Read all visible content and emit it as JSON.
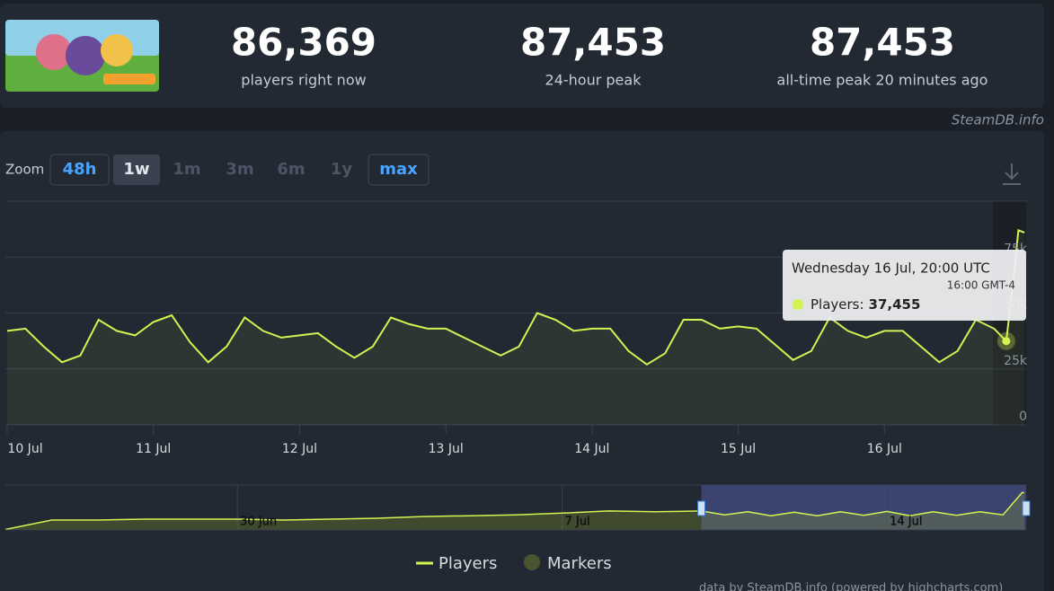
{
  "header": {
    "stats": [
      {
        "value": "86,369",
        "label": "players right now"
      },
      {
        "value": "87,453",
        "label": "24-hour peak"
      },
      {
        "value": "87,453",
        "label": "all-time peak 20 minutes ago"
      }
    ],
    "credit": "SteamDB.info"
  },
  "zoom": {
    "label": "Zoom",
    "buttons": [
      "48h",
      "1w",
      "1m",
      "3m",
      "6m",
      "1y",
      "max"
    ]
  },
  "chart_data": [
    {
      "type": "line",
      "x": [
        "10 Jul 00:00",
        "10 Jul 03:00",
        "10 Jul 06:00",
        "10 Jul 09:00",
        "10 Jul 12:00",
        "10 Jul 15:00",
        "10 Jul 18:00",
        "10 Jul 21:00",
        "11 Jul 00:00",
        "11 Jul 03:00",
        "11 Jul 06:00",
        "11 Jul 09:00",
        "11 Jul 12:00",
        "11 Jul 15:00",
        "11 Jul 18:00",
        "11 Jul 21:00",
        "12 Jul 00:00",
        "12 Jul 03:00",
        "12 Jul 06:00",
        "12 Jul 09:00",
        "12 Jul 12:00",
        "12 Jul 15:00",
        "12 Jul 18:00",
        "12 Jul 21:00",
        "13 Jul 00:00",
        "13 Jul 03:00",
        "13 Jul 06:00",
        "13 Jul 09:00",
        "13 Jul 12:00",
        "13 Jul 15:00",
        "13 Jul 18:00",
        "13 Jul 21:00",
        "14 Jul 00:00",
        "14 Jul 03:00",
        "14 Jul 06:00",
        "14 Jul 09:00",
        "14 Jul 12:00",
        "14 Jul 15:00",
        "14 Jul 18:00",
        "14 Jul 21:00",
        "15 Jul 00:00",
        "15 Jul 03:00",
        "15 Jul 06:00",
        "15 Jul 09:00",
        "15 Jul 12:00",
        "15 Jul 15:00",
        "15 Jul 18:00",
        "15 Jul 21:00",
        "16 Jul 00:00",
        "16 Jul 03:00",
        "16 Jul 06:00",
        "16 Jul 09:00",
        "16 Jul 12:00",
        "16 Jul 15:00",
        "16 Jul 18:00",
        "16 Jul 20:00",
        "16 Jul 21:00",
        "16 Jul 22:00",
        "16 Jul 23:00"
      ],
      "series": [
        {
          "name": "Players",
          "color": "#d4f251",
          "values": [
            42000,
            43000,
            35000,
            28000,
            31000,
            47000,
            42000,
            40000,
            46000,
            49000,
            37000,
            28000,
            35000,
            48000,
            42000,
            39000,
            40000,
            41000,
            35000,
            30000,
            35000,
            48000,
            45000,
            43000,
            43000,
            39000,
            35000,
            31000,
            35000,
            50000,
            47000,
            42000,
            43000,
            43000,
            33000,
            27000,
            32000,
            47000,
            47000,
            43000,
            44000,
            43000,
            36000,
            29000,
            33000,
            48000,
            42000,
            39000,
            42000,
            42000,
            35000,
            28000,
            33000,
            47000,
            43000,
            37455,
            61000,
            87000,
            86000
          ]
        }
      ],
      "markers": {
        "name": "Markers",
        "color": "#4a5530"
      },
      "xlim": [
        "10 Jul 00:00",
        "17 Jul 00:00"
      ],
      "xticks": [
        "10 Jul",
        "11 Jul",
        "12 Jul",
        "13 Jul",
        "14 Jul",
        "15 Jul",
        "16 Jul"
      ],
      "ylim": [
        0,
        100000
      ],
      "yticks": [
        0,
        {
          "value": 25000,
          "label": "25k"
        },
        {
          "value": 50000,
          "label": "50k"
        },
        {
          "value": 75000,
          "label": "75k"
        }
      ],
      "grid": true,
      "tooltip": {
        "title": "Wednesday 16 Jul, 20:00 UTC",
        "subtitle": "16:00 GMT-4",
        "label": "Players:",
        "value": "37,455"
      }
    },
    {
      "type": "line",
      "x": [
        "25 Jun 00:00",
        "26 Jun 00:00",
        "27 Jun 00:00",
        "28 Jun 00:00",
        "29 Jun 00:00",
        "30 Jun 00:00",
        "1 Jul 00:00",
        "2 Jul 00:00",
        "3 Jul 00:00",
        "4 Jul 00:00",
        "5 Jul 00:00",
        "6 Jul 00:00",
        "7 Jul 00:00",
        "8 Jul 00:00",
        "9 Jul 00:00",
        "10 Jul 00:00",
        "10 Jul 12:00",
        "11 Jul 00:00",
        "11 Jul 12:00",
        "12 Jul 00:00",
        "12 Jul 12:00",
        "13 Jul 00:00",
        "13 Jul 12:00",
        "14 Jul 00:00",
        "14 Jul 12:00",
        "15 Jul 00:00",
        "15 Jul 12:00",
        "16 Jul 00:00",
        "16 Jul 12:00",
        "16 Jul 22:00",
        "16 Jul 23:00"
      ],
      "series": [
        {
          "color": "#d4f251",
          "values": [
            1000,
            23000,
            23000,
            25000,
            25000,
            25000,
            23000,
            25000,
            27000,
            31000,
            33000,
            35000,
            39000,
            44000,
            42000,
            44000,
            35000,
            42000,
            33000,
            41000,
            33000,
            42000,
            34000,
            43000,
            33000,
            42000,
            34000,
            42000,
            35000,
            87000,
            86000
          ]
        }
      ],
      "xlim": [
        "25 Jun 00:00",
        "17 Jul 00:00"
      ],
      "xticks": [
        "30 Jun",
        "7 Jul",
        "14 Jul"
      ],
      "ylim": [
        0,
        100000
      ]
    }
  ],
  "footer": "data by SteamDB.info (powered by highcharts.com)"
}
